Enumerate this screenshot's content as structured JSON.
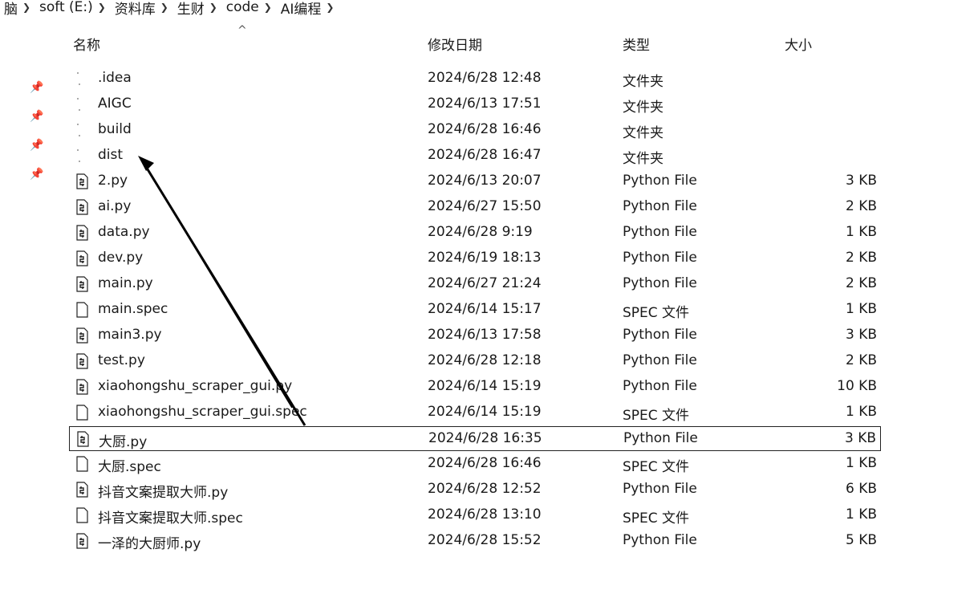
{
  "breadcrumb": [
    {
      "label": "脑"
    },
    {
      "label": "soft (E:)"
    },
    {
      "label": "资料库"
    },
    {
      "label": "生财"
    },
    {
      "label": "code"
    },
    {
      "label": "AI编程"
    }
  ],
  "headers": {
    "name": "名称",
    "date": "修改日期",
    "type": "类型",
    "size": "大小",
    "sort_arrow": "^"
  },
  "quick_access_pin_icon": "pin-icon",
  "files": [
    {
      "name": ".idea",
      "date": "2024/6/28 12:48",
      "type": "文件夹",
      "size": "",
      "icon": "folder-icon"
    },
    {
      "name": "AIGC",
      "date": "2024/6/13 17:51",
      "type": "文件夹",
      "size": "",
      "icon": "folder-icon"
    },
    {
      "name": "build",
      "date": "2024/6/28 16:46",
      "type": "文件夹",
      "size": "",
      "icon": "folder-icon"
    },
    {
      "name": "dist",
      "date": "2024/6/28 16:47",
      "type": "文件夹",
      "size": "",
      "icon": "folder-icon"
    },
    {
      "name": "2.py",
      "date": "2024/6/13 20:07",
      "type": "Python File",
      "size": "3 KB",
      "icon": "python-file-icon"
    },
    {
      "name": "ai.py",
      "date": "2024/6/27 15:50",
      "type": "Python File",
      "size": "2 KB",
      "icon": "python-file-icon"
    },
    {
      "name": "data.py",
      "date": "2024/6/28 9:19",
      "type": "Python File",
      "size": "1 KB",
      "icon": "python-file-icon"
    },
    {
      "name": "dev.py",
      "date": "2024/6/19 18:13",
      "type": "Python File",
      "size": "2 KB",
      "icon": "python-file-icon"
    },
    {
      "name": "main.py",
      "date": "2024/6/27 21:24",
      "type": "Python File",
      "size": "2 KB",
      "icon": "python-file-icon"
    },
    {
      "name": "main.spec",
      "date": "2024/6/14 15:17",
      "type": "SPEC 文件",
      "size": "1 KB",
      "icon": "spec-file-icon"
    },
    {
      "name": "main3.py",
      "date": "2024/6/13 17:58",
      "type": "Python File",
      "size": "3 KB",
      "icon": "python-file-icon"
    },
    {
      "name": "test.py",
      "date": "2024/6/28 12:18",
      "type": "Python File",
      "size": "2 KB",
      "icon": "python-file-icon"
    },
    {
      "name": "xiaohongshu_scraper_gui.py",
      "date": "2024/6/14 15:19",
      "type": "Python File",
      "size": "10 KB",
      "icon": "python-file-icon"
    },
    {
      "name": "xiaohongshu_scraper_gui.spec",
      "date": "2024/6/14 15:19",
      "type": "SPEC 文件",
      "size": "1 KB",
      "icon": "spec-file-icon"
    },
    {
      "name": "大厨.py",
      "date": "2024/6/28 16:35",
      "type": "Python File",
      "size": "3 KB",
      "icon": "python-file-icon",
      "selected": true
    },
    {
      "name": "大厨.spec",
      "date": "2024/6/28 16:46",
      "type": "SPEC 文件",
      "size": "1 KB",
      "icon": "spec-file-icon"
    },
    {
      "name": "抖音文案提取大师.py",
      "date": "2024/6/28 12:52",
      "type": "Python File",
      "size": "6 KB",
      "icon": "python-file-icon"
    },
    {
      "name": "抖音文案提取大师.spec",
      "date": "2024/6/28 13:10",
      "type": "SPEC 文件",
      "size": "1 KB",
      "icon": "spec-file-icon"
    },
    {
      "name": "一泽的大厨师.py",
      "date": "2024/6/28 15:52",
      "type": "Python File",
      "size": "5 KB",
      "icon": "python-file-icon"
    }
  ],
  "annotation_arrow_icon": "annotation-arrow-icon",
  "annotation_color": "#000000"
}
